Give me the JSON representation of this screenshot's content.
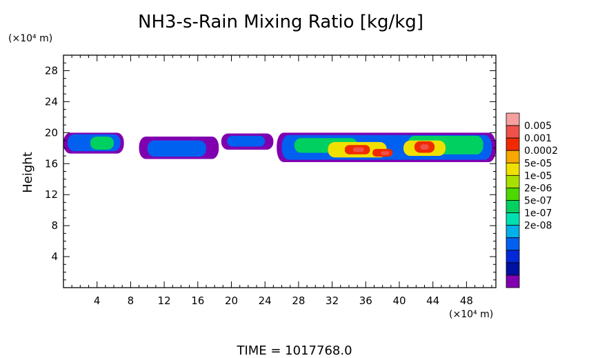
{
  "chart_data": {
    "type": "heatmap",
    "title": "NH3-s-Rain Mixing Ratio [kg/kg]",
    "ylabel": "Height",
    "x_unit_label": "(×10⁴ m)",
    "y_unit_label": "(×10⁴ m)",
    "footer": "TIME = 1017768.0",
    "xlim": [
      0,
      51.5
    ],
    "ylim": [
      0,
      30
    ],
    "x_ticks": [
      4,
      8,
      12,
      16,
      20,
      24,
      28,
      32,
      36,
      40,
      44,
      48
    ],
    "y_ticks": [
      4,
      8,
      12,
      16,
      20,
      24,
      28
    ],
    "x_tick_labels": [
      "4",
      "8",
      "12",
      "16",
      "20",
      "24",
      "28",
      "32",
      "36",
      "40",
      "44",
      "48"
    ],
    "y_tick_labels": [
      "4",
      "8",
      "12",
      "16",
      "20",
      "24",
      "28"
    ],
    "colorbar": {
      "labels": [
        "0.005",
        "0.001",
        "0.0002",
        "5e-05",
        "1e-05",
        "2e-06",
        "5e-07",
        "1e-07",
        "2e-08"
      ],
      "colors": [
        "#f6a0a0",
        "#f0504a",
        "#f02a00",
        "#f8a800",
        "#f0e000",
        "#a8e000",
        "#4cd800",
        "#00d060",
        "#00e0b0",
        "#00b0e8",
        "#0060f0",
        "#0028d8",
        "#0010a0",
        "#8000b0"
      ]
    },
    "regions": [
      {
        "level": 0,
        "x_range": [
          0,
          7.2
        ],
        "y_range": [
          17.3,
          20.0
        ]
      },
      {
        "level": 0,
        "x_range": [
          9.0,
          18.5
        ],
        "y_range": [
          16.6,
          19.5
        ]
      },
      {
        "level": 0,
        "x_range": [
          18.8,
          25.0
        ],
        "y_range": [
          17.8,
          19.9
        ]
      },
      {
        "level": 0,
        "x_range": [
          25.4,
          51.5
        ],
        "y_range": [
          16.2,
          20.0
        ]
      },
      {
        "level": 3,
        "x_range": [
          0.5,
          6.8
        ],
        "y_range": [
          17.6,
          19.8
        ]
      },
      {
        "level": 3,
        "x_range": [
          10.0,
          17.0
        ],
        "y_range": [
          16.9,
          19.0
        ]
      },
      {
        "level": 3,
        "x_range": [
          19.5,
          24.0
        ],
        "y_range": [
          18.2,
          19.6
        ]
      },
      {
        "level": 3,
        "x_range": [
          26.0,
          51.0
        ],
        "y_range": [
          16.5,
          19.7
        ]
      },
      {
        "level": 6,
        "x_range": [
          3.2,
          6.0
        ],
        "y_range": [
          17.8,
          19.5
        ]
      },
      {
        "level": 6,
        "x_range": [
          27.5,
          35.0
        ],
        "y_range": [
          17.4,
          19.3
        ]
      },
      {
        "level": 6,
        "x_range": [
          41.0,
          50.0
        ],
        "y_range": [
          17.2,
          19.6
        ]
      },
      {
        "level": 9,
        "x_range": [
          31.5,
          38.5
        ],
        "y_range": [
          16.8,
          18.8
        ]
      },
      {
        "level": 9,
        "x_range": [
          40.5,
          45.5
        ],
        "y_range": [
          17.0,
          19.0
        ]
      },
      {
        "level": 11,
        "x_range": [
          33.5,
          36.5
        ],
        "y_range": [
          17.2,
          18.4
        ]
      },
      {
        "level": 11,
        "x_range": [
          36.8,
          39.2
        ],
        "y_range": [
          16.9,
          17.9
        ]
      },
      {
        "level": 11,
        "x_range": [
          41.8,
          44.2
        ],
        "y_range": [
          17.4,
          18.9
        ]
      },
      {
        "level": 12,
        "x_range": [
          34.5,
          35.8
        ],
        "y_range": [
          17.5,
          18.1
        ]
      },
      {
        "level": 12,
        "x_range": [
          37.8,
          38.8
        ],
        "y_range": [
          17.1,
          17.6
        ]
      },
      {
        "level": 12,
        "x_range": [
          42.5,
          43.5
        ],
        "y_range": [
          17.8,
          18.5
        ]
      }
    ]
  }
}
